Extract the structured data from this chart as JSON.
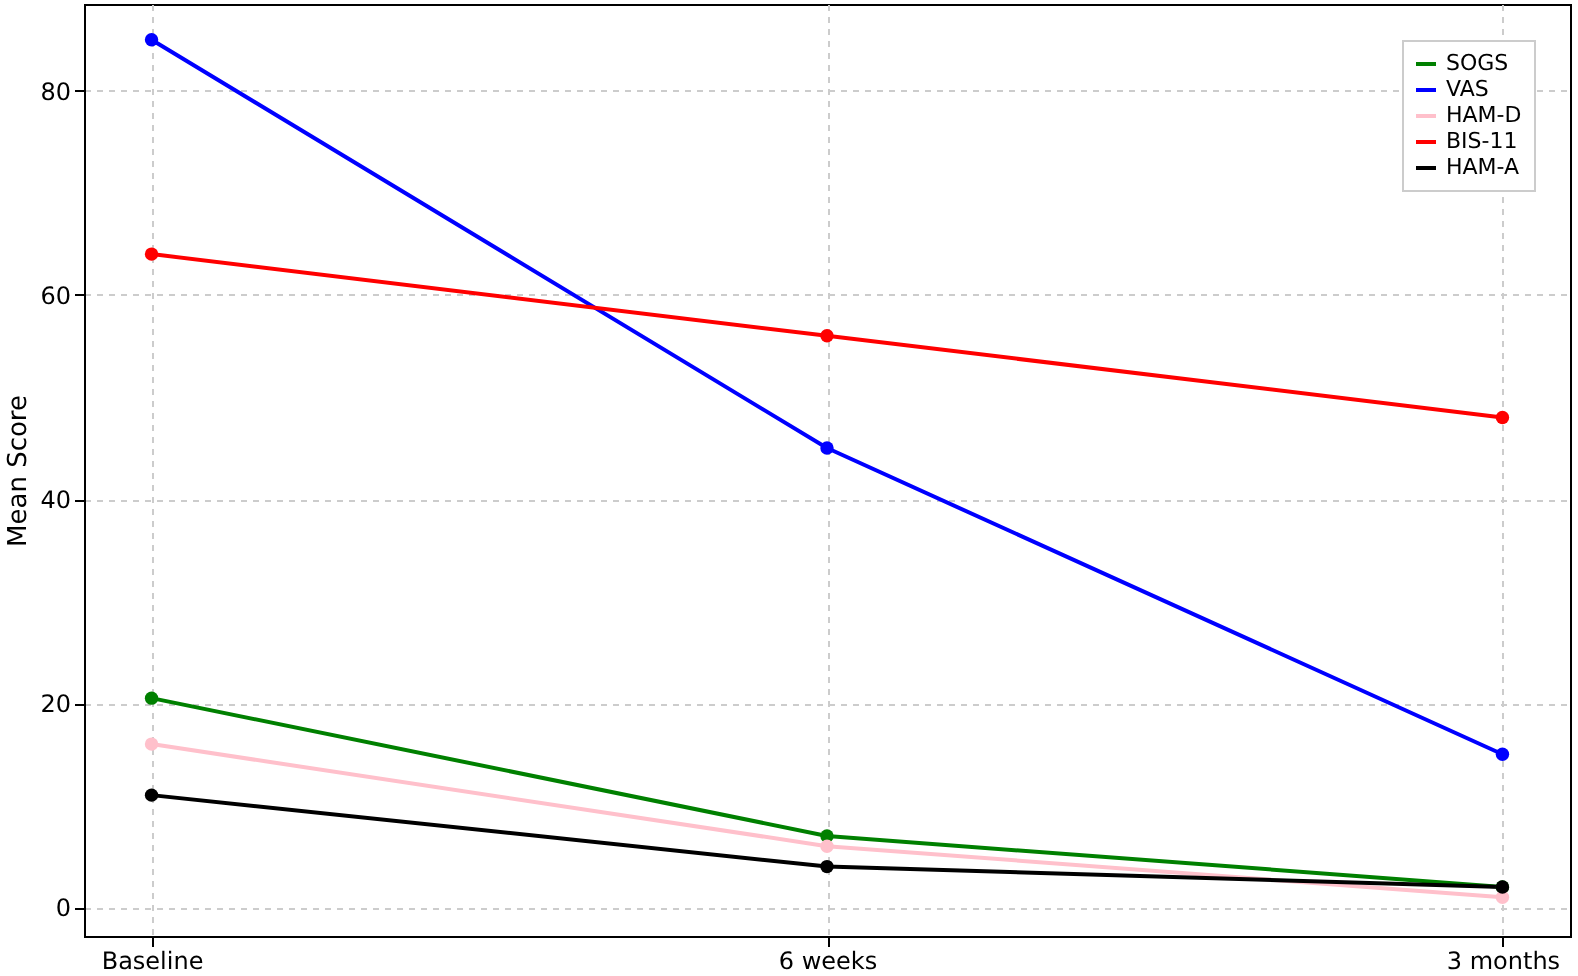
{
  "chart_data": {
    "type": "line",
    "ylabel": "Mean Score",
    "categories": [
      "Baseline",
      "6 weeks",
      "3 months"
    ],
    "series": [
      {
        "name": "SOGS",
        "color": "#008000",
        "values": [
          20.5,
          7,
          2
        ]
      },
      {
        "name": "VAS",
        "color": "#0000ff",
        "values": [
          85,
          45,
          15
        ]
      },
      {
        "name": "HAM-D",
        "color": "#ffc0cb",
        "values": [
          16,
          6,
          1
        ]
      },
      {
        "name": "BIS-11",
        "color": "#ff0000",
        "values": [
          64,
          56,
          48
        ]
      },
      {
        "name": "HAM-A",
        "color": "#000000",
        "values": [
          11,
          4,
          2
        ]
      }
    ],
    "ylim": [
      -2.8,
      88.5
    ],
    "yticks": [
      0,
      20,
      40,
      60,
      80
    ],
    "grid": true,
    "legend": "top right",
    "marker": "circle",
    "line_style": "solid"
  }
}
